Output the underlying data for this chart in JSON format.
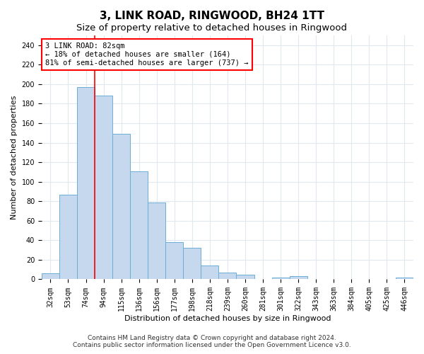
{
  "title": "3, LINK ROAD, RINGWOOD, BH24 1TT",
  "subtitle": "Size of property relative to detached houses in Ringwood",
  "xlabel": "Distribution of detached houses by size in Ringwood",
  "ylabel": "Number of detached properties",
  "bar_labels": [
    "32sqm",
    "53sqm",
    "74sqm",
    "94sqm",
    "115sqm",
    "136sqm",
    "156sqm",
    "177sqm",
    "198sqm",
    "218sqm",
    "239sqm",
    "260sqm",
    "281sqm",
    "301sqm",
    "322sqm",
    "343sqm",
    "363sqm",
    "384sqm",
    "405sqm",
    "425sqm",
    "446sqm"
  ],
  "bar_values": [
    6,
    87,
    197,
    188,
    149,
    111,
    79,
    38,
    32,
    14,
    7,
    5,
    0,
    2,
    3,
    0,
    0,
    0,
    0,
    0,
    2
  ],
  "bar_color": "#c5d8ed",
  "bar_edge_color": "#6aaed6",
  "red_line_x": 2.5,
  "annotation_text": "3 LINK ROAD: 82sqm\n← 18% of detached houses are smaller (164)\n81% of semi-detached houses are larger (737) →",
  "ylim": [
    0,
    250
  ],
  "yticks": [
    0,
    20,
    40,
    60,
    80,
    100,
    120,
    140,
    160,
    180,
    200,
    220,
    240
  ],
  "footer_line1": "Contains HM Land Registry data © Crown copyright and database right 2024.",
  "footer_line2": "Contains public sector information licensed under the Open Government Licence v3.0.",
  "bg_color": "#ffffff",
  "plot_bg_color": "#ffffff",
  "title_fontsize": 11,
  "subtitle_fontsize": 9.5,
  "axis_label_fontsize": 8,
  "tick_fontsize": 7,
  "annotation_fontsize": 7.5,
  "footer_fontsize": 6.5
}
